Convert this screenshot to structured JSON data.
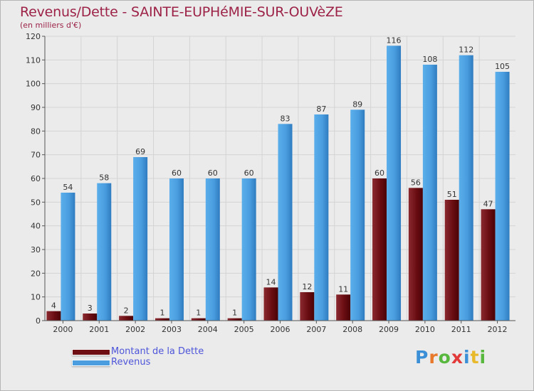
{
  "title": "Revenus/Dette - SAINTE-EUPHéMIE-SUR-OUVèZE",
  "unit_label": "(en milliers d'€)",
  "legend": [
    {
      "label": "Montant de la Dette",
      "color": "#6f0e12"
    },
    {
      "label": "Revenus",
      "color": "#4a9ee0"
    }
  ],
  "logo": {
    "letters": [
      "P",
      "r",
      "o",
      "x",
      "i",
      "t",
      "i"
    ],
    "colors": [
      "#3a8fd6",
      "#e8782a",
      "#58b83e",
      "#e23a3a",
      "#3a8fd6",
      "#e8b92a",
      "#58b83e"
    ]
  },
  "chart_data": {
    "type": "bar",
    "title": "Revenus/Dette - SAINTE-EUPHéMIE-SUR-OUVèZE",
    "ylabel": "(en milliers d'€)",
    "xlabel": "",
    "ylim": [
      0,
      120
    ],
    "yticks": [
      0,
      10,
      20,
      30,
      40,
      50,
      60,
      70,
      80,
      90,
      100,
      110,
      120
    ],
    "grid": true,
    "categories": [
      "2000",
      "2001",
      "2002",
      "2003",
      "2004",
      "2005",
      "2006",
      "2007",
      "2008",
      "2009",
      "2010",
      "2011",
      "2012"
    ],
    "series": [
      {
        "name": "Montant de la Dette",
        "color": "#7a1a1f",
        "values": [
          4,
          3,
          2,
          1,
          1,
          1,
          14,
          12,
          11,
          60,
          56,
          51,
          47
        ]
      },
      {
        "name": "Revenus",
        "color": "#4a9ee0",
        "values": [
          54,
          58,
          69,
          60,
          60,
          60,
          83,
          87,
          89,
          116,
          108,
          112,
          105
        ]
      }
    ]
  }
}
